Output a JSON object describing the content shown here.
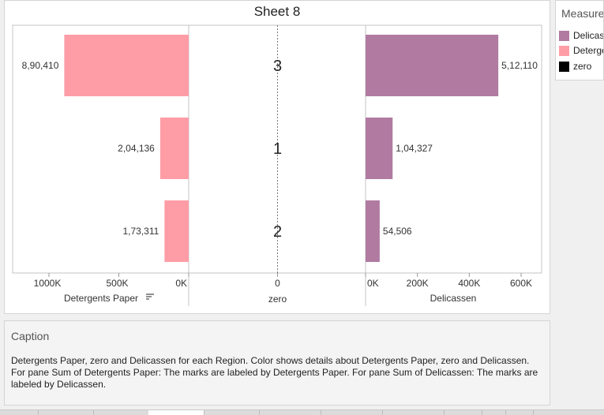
{
  "title": "Sheet 8",
  "legend": {
    "title": "Measure Names",
    "items": [
      {
        "label": "Delicassen",
        "color": "#b07aa1"
      },
      {
        "label": "Detergents Paper",
        "color": "#ff9da7"
      },
      {
        "label": "zero",
        "color": "#000000"
      }
    ]
  },
  "caption": {
    "title": "Caption",
    "text": "Detergents Paper, zero and Delicassen for each Region.  Color shows details about Detergents Paper, zero and Delicassen.  For pane Sum of Detergents Paper:  The marks are labeled by Detergents Paper.  For pane Sum of Delicassen:  The marks are labeled by Delicassen."
  },
  "chart_data": {
    "type": "bar",
    "categories": [
      "3",
      "1",
      "2"
    ],
    "series": [
      {
        "name": "Detergents Paper",
        "values": [
          890410,
          204136,
          173311
        ],
        "labels": [
          "8,90,410",
          "2,04,136",
          "1,73,311"
        ],
        "color": "#ff9da7",
        "xlim": [
          1000000,
          0
        ],
        "ticks": [
          "1000K",
          "500K",
          "0K"
        ],
        "tick_values": [
          1000000,
          500000,
          0
        ],
        "xlabel": "Detergents Paper"
      },
      {
        "name": "zero",
        "values": [
          0,
          0,
          0
        ],
        "color": "#000000",
        "ticks": [
          "0"
        ],
        "xlabel": "zero"
      },
      {
        "name": "Delicassen",
        "values": [
          512110,
          104327,
          54506
        ],
        "labels": [
          "5,12,110",
          "1,04,327",
          "54,506"
        ],
        "color": "#b07aa1",
        "xlim": [
          0,
          600000
        ],
        "ticks": [
          "0K",
          "200K",
          "400K",
          "600K"
        ],
        "tick_values": [
          0,
          200000,
          400000,
          600000
        ],
        "xlabel": "Delicassen"
      }
    ]
  }
}
